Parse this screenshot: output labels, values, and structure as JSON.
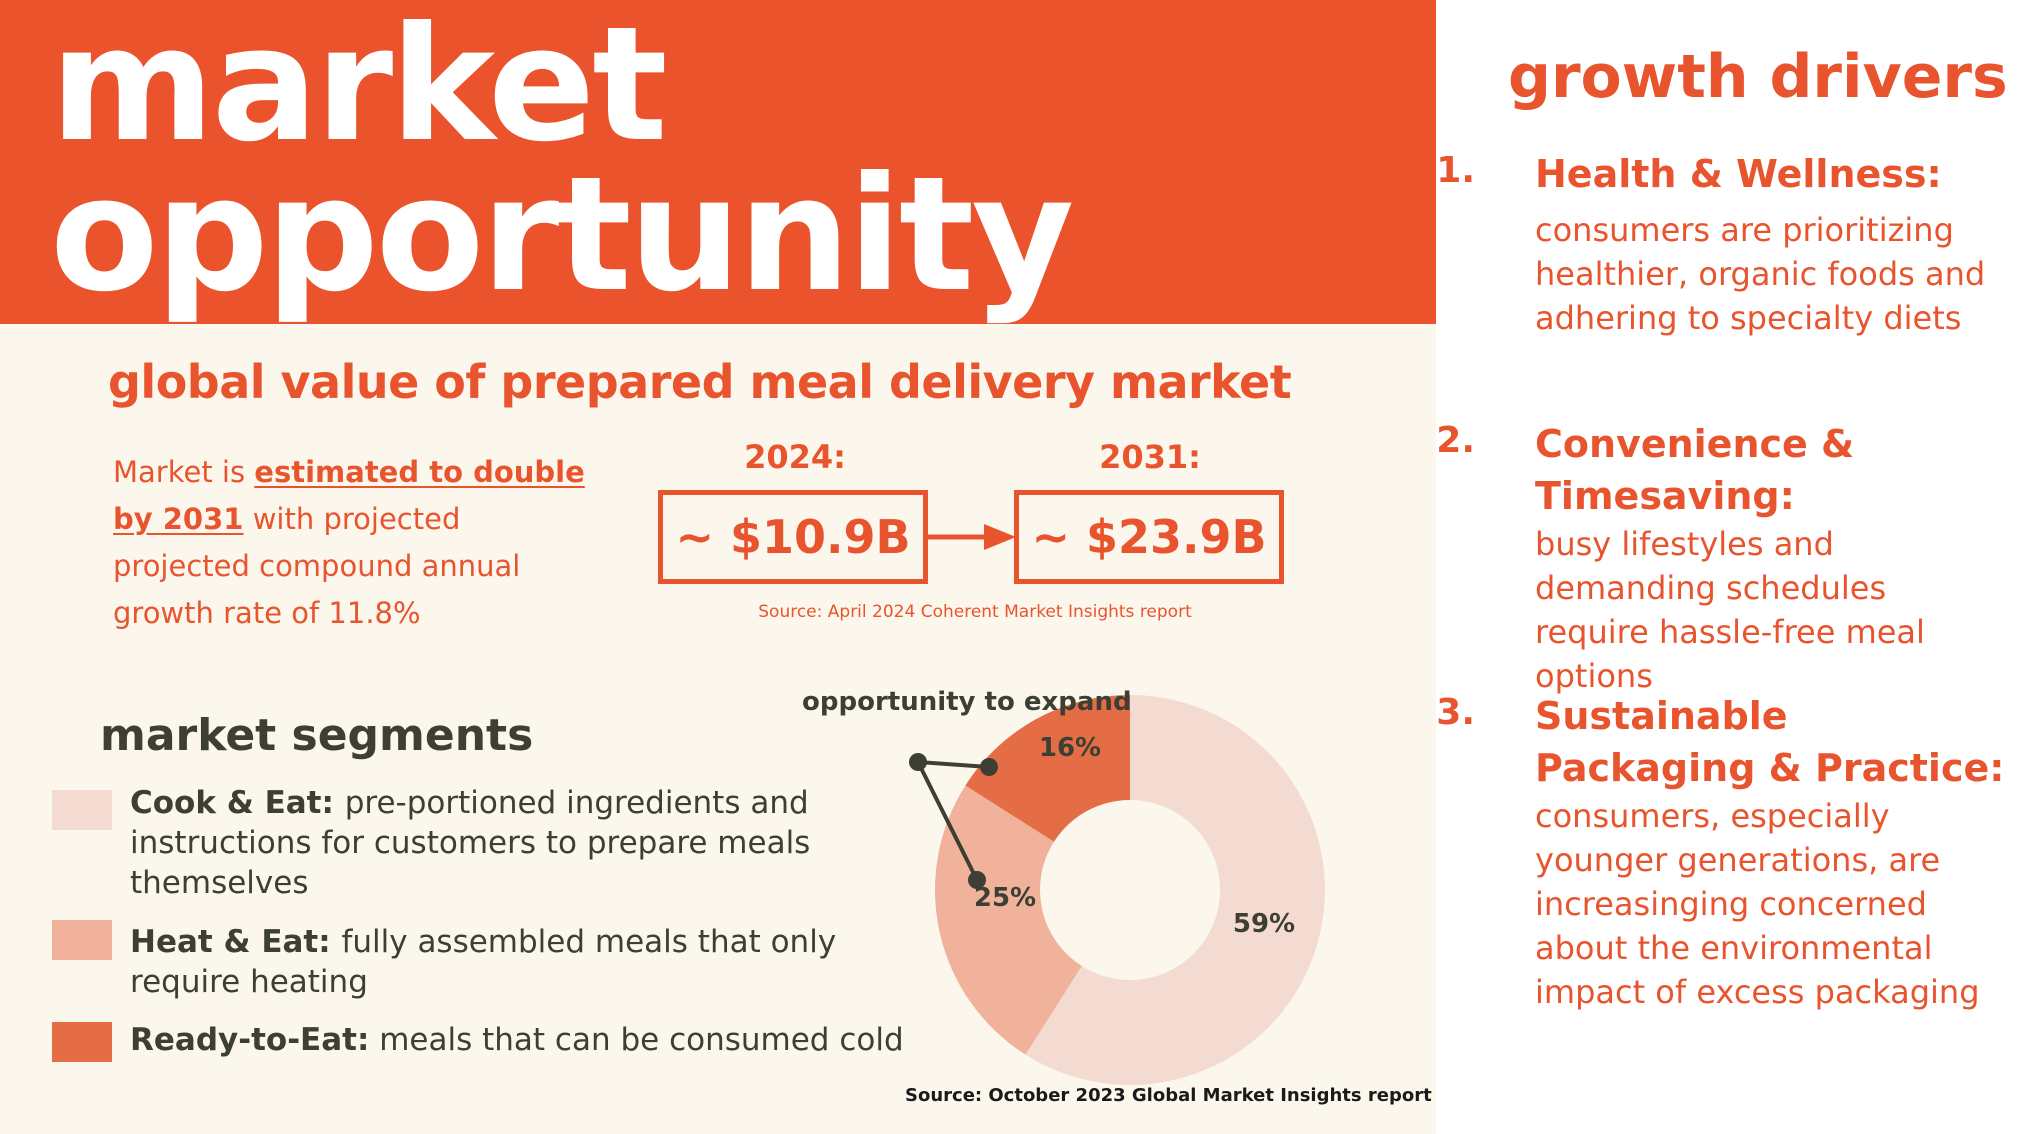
{
  "header": {
    "title_line1": "market",
    "title_line2": "opportunity"
  },
  "market_value": {
    "subtitle": "global value of prepared meal delivery market",
    "text_prefix": "Market is ",
    "text_emphasis": "estimated to double by 2031",
    "text_suffix": " with projected projected compound annual growth rate of 11.8%",
    "year_a": "2024:",
    "value_a": "~ $10.9B",
    "year_b": "2031:",
    "value_b": "~ $23.9B",
    "source": "Source: April 2024 Coherent Market Insights report"
  },
  "segments": {
    "heading": "market segments",
    "items": [
      {
        "name": "Cook & Eat",
        "sep": ": ",
        "desc": "pre-portioned ingredients and instructions for customers to prepare meals themselves"
      },
      {
        "name": "Heat & Eat",
        "sep": ": ",
        "desc": "fully assembled meals that only require heating"
      },
      {
        "name": "Ready-to-Eat:",
        "sep": " ",
        "desc": "meals that can be consumed cold"
      }
    ],
    "callout": "opportunity to expand",
    "source": "Source: October 2023 Global Market Insights report"
  },
  "chart_data": {
    "type": "pie",
    "variant": "donut",
    "categories": [
      "Cook & Eat",
      "Heat & Eat",
      "Ready-to-Eat"
    ],
    "values": [
      59,
      25,
      16
    ],
    "labels": [
      "59%",
      "25%",
      "16%"
    ],
    "colors": [
      "#f3dbd2",
      "#f1b29c",
      "#e46d45"
    ],
    "annotations": [
      "opportunity to expand"
    ]
  },
  "drivers": {
    "title": "growth drivers",
    "items": [
      {
        "num": "1.",
        "head": "Health & Wellness:",
        "body": "consumers are prioritizing healthier, organic foods and adhering to specialty diets"
      },
      {
        "num": "2.",
        "head": "Convenience & Timesaving:",
        "body": "busy lifestyles and demanding schedules require hassle-free meal options"
      },
      {
        "num": "3.",
        "head": "Sustainable Packaging & Practice:",
        "body": "consumers, especially younger generations, are increasinging concerned about the environmental impact of excess packaging"
      }
    ]
  },
  "colors": {
    "accent": "#ea532c",
    "cream": "#fcf7ec",
    "dark_text": "#3d3f35"
  }
}
